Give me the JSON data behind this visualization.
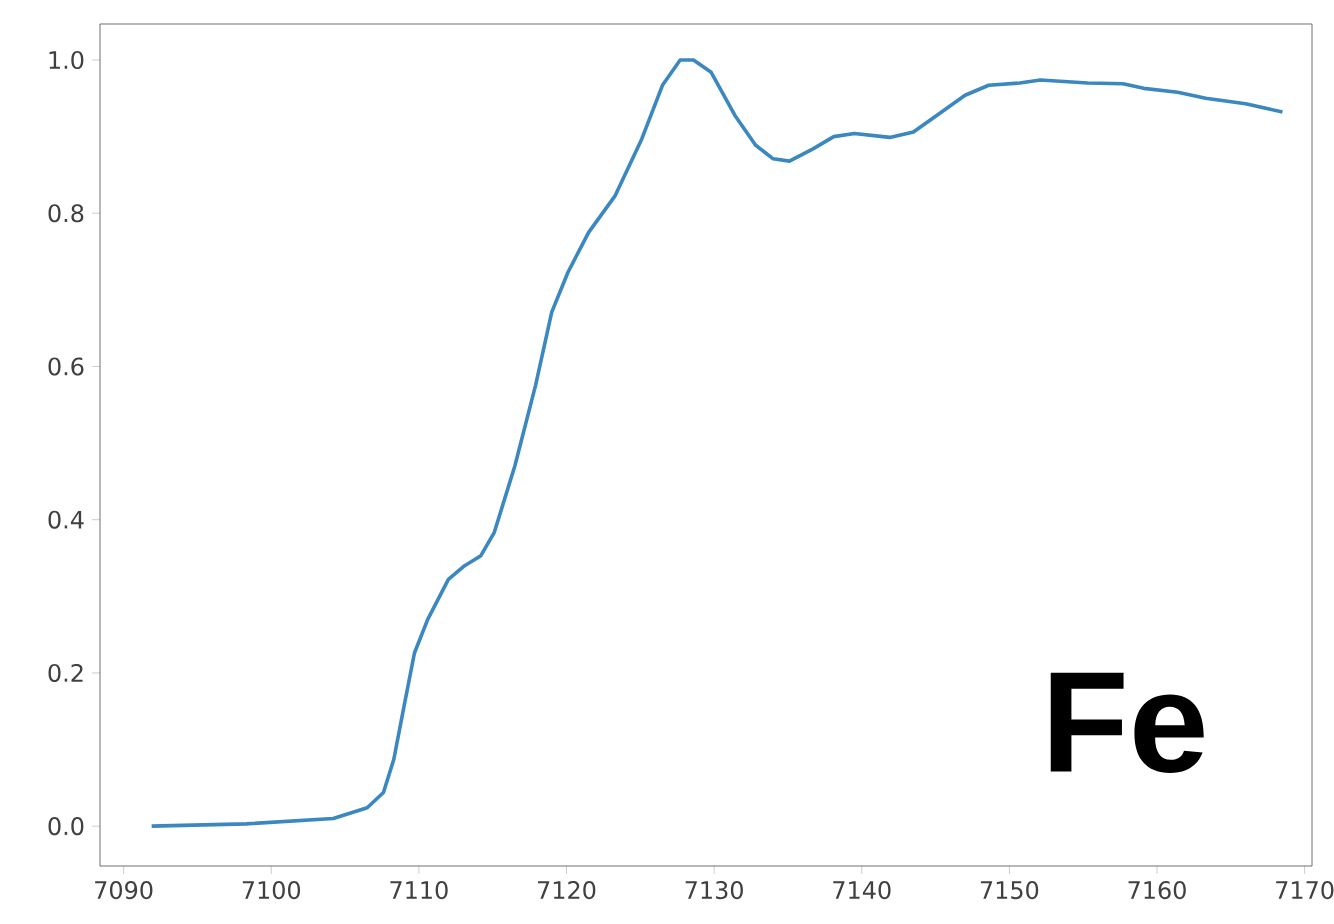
{
  "chart_data": {
    "type": "line",
    "x": [
      7091.9,
      7098.3,
      7104.2,
      7106.5,
      7107.6,
      7108.3,
      7109.0,
      7109.7,
      7110.6,
      7112.0,
      7113.1,
      7114.2,
      7115.1,
      7116.5,
      7117.9,
      7119.0,
      7120.1,
      7121.5,
      7123.3,
      7125.1,
      7126.5,
      7127.7,
      7128.6,
      7129.8,
      7131.4,
      7132.8,
      7134.0,
      7135.1,
      7136.7,
      7138.1,
      7139.5,
      7141.9,
      7143.5,
      7145.1,
      7147.0,
      7148.6,
      7150.7,
      7152.1,
      7155.3,
      7157.7,
      7159.1,
      7161.4,
      7163.3,
      7166.0,
      7168.5
    ],
    "series": [
      {
        "color": "#3b87c0",
        "values": [
          0,
          0.003,
          0.01,
          0.024,
          0.044,
          0.087,
          0.157,
          0.226,
          0.27,
          0.322,
          0.34,
          0.353,
          0.383,
          0.47,
          0.575,
          0.671,
          0.723,
          0.775,
          0.823,
          0.897,
          0.967,
          1.0,
          1.0,
          0.984,
          0.928,
          0.889,
          0.871,
          0.868,
          0.884,
          0.9,
          0.904,
          0.899,
          0.906,
          0.928,
          0.954,
          0.967,
          0.97,
          0.974,
          0.97,
          0.969,
          0.963,
          0.958,
          0.95,
          0.943,
          0.932
        ]
      }
    ],
    "xlim": [
      7088.4,
      7170.5
    ],
    "ylim": [
      -0.052,
      1.047
    ],
    "xticks": [
      7090,
      7100,
      7110,
      7120,
      7130,
      7140,
      7150,
      7160,
      7170
    ],
    "yticks": [
      {
        "value": 0,
        "label": "0.0"
      },
      {
        "value": 0.2,
        "label": "0.2"
      },
      {
        "value": 0.4,
        "label": "0.4"
      },
      {
        "value": 0.6,
        "label": "0.6"
      },
      {
        "value": 0.8,
        "label": "0.8"
      },
      {
        "value": 1.0,
        "label": "1.0"
      }
    ],
    "annotations": [
      "Fe"
    ],
    "grid": false,
    "marker": "none",
    "line_style": "solid"
  }
}
